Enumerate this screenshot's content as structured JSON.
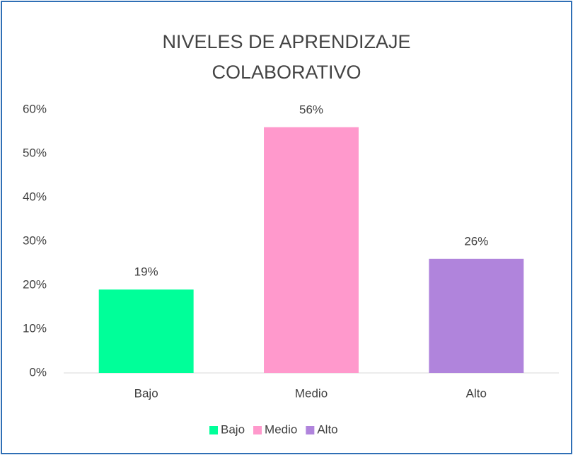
{
  "chart_data": {
    "type": "bar",
    "title": "NIVELES DE APRENDIZAJE COLABORATIVO",
    "categories": [
      "Bajo",
      "Medio",
      "Alto"
    ],
    "values": [
      19,
      56,
      26
    ],
    "value_labels": [
      "19%",
      "56%",
      "26%"
    ],
    "colors": [
      "#00ff99",
      "#ff99cc",
      "#b084dc"
    ],
    "ylim": [
      0,
      60
    ],
    "yticks": [
      {
        "value": 0,
        "label": "0%"
      },
      {
        "value": 10,
        "label": "10%"
      },
      {
        "value": 20,
        "label": "20%"
      },
      {
        "value": 30,
        "label": "30%"
      },
      {
        "value": 40,
        "label": "40%"
      },
      {
        "value": 50,
        "label": "50%"
      },
      {
        "value": 60,
        "label": "60%"
      }
    ],
    "grid": false,
    "legend": "bottom"
  }
}
